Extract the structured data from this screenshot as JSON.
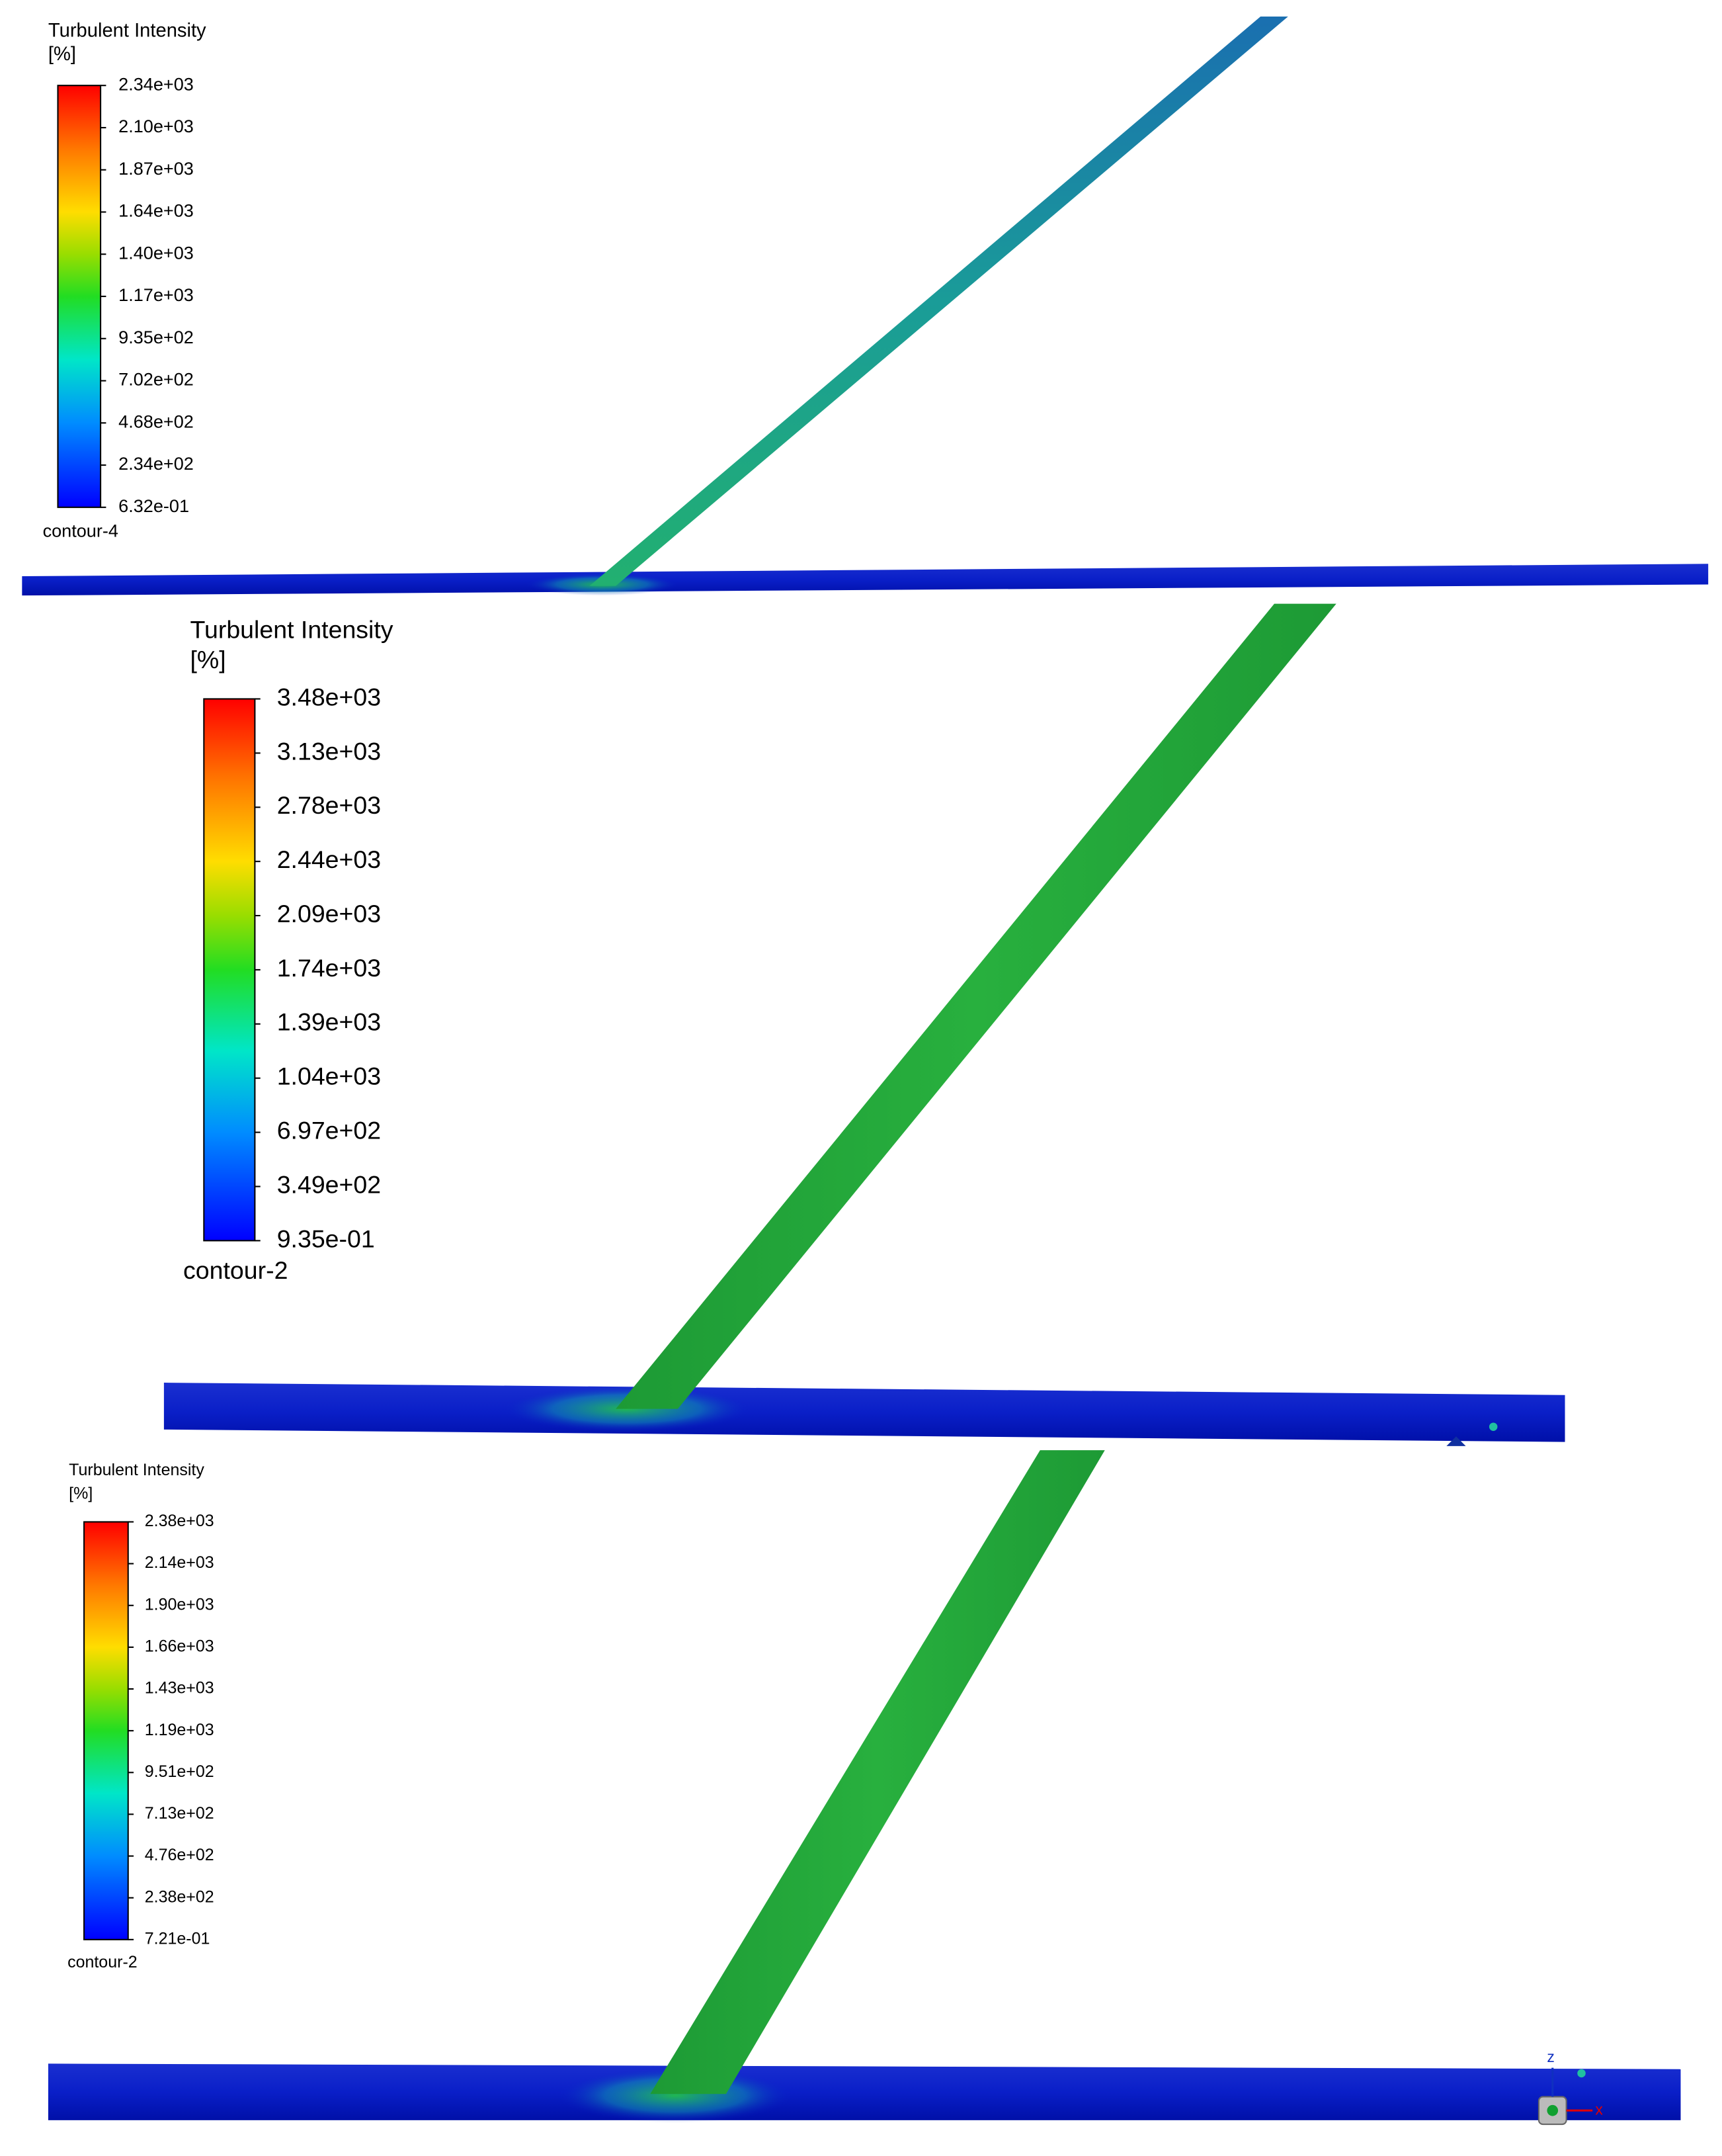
{
  "panels": [
    {
      "title": "Turbulent Intensity",
      "unit": "[%]",
      "ticks": [
        "2.34e+03",
        "2.10e+03",
        "1.87e+03",
        "1.64e+03",
        "1.40e+03",
        "1.17e+03",
        "9.35e+02",
        "7.02e+02",
        "4.68e+02",
        "2.34e+02",
        "6.32e-01"
      ],
      "name": "contour-4"
    },
    {
      "title": "Turbulent Intensity",
      "unit": "[%]",
      "ticks": [
        "3.48e+03",
        "3.13e+03",
        "2.78e+03",
        "2.44e+03",
        "2.09e+03",
        "1.74e+03",
        "1.39e+03",
        "1.04e+03",
        "6.97e+02",
        "3.49e+02",
        "9.35e-01"
      ],
      "name": "contour-2"
    },
    {
      "title": "Turbulent Intensity",
      "unit": "[%]",
      "ticks": [
        "2.38e+03",
        "2.14e+03",
        "1.90e+03",
        "1.66e+03",
        "1.43e+03",
        "1.19e+03",
        "9.51e+02",
        "7.13e+02",
        "4.76e+02",
        "2.38e+02",
        "7.21e-01"
      ],
      "name": "contour-2"
    }
  ],
  "axis_triad": {
    "z": "z",
    "x": "x"
  }
}
